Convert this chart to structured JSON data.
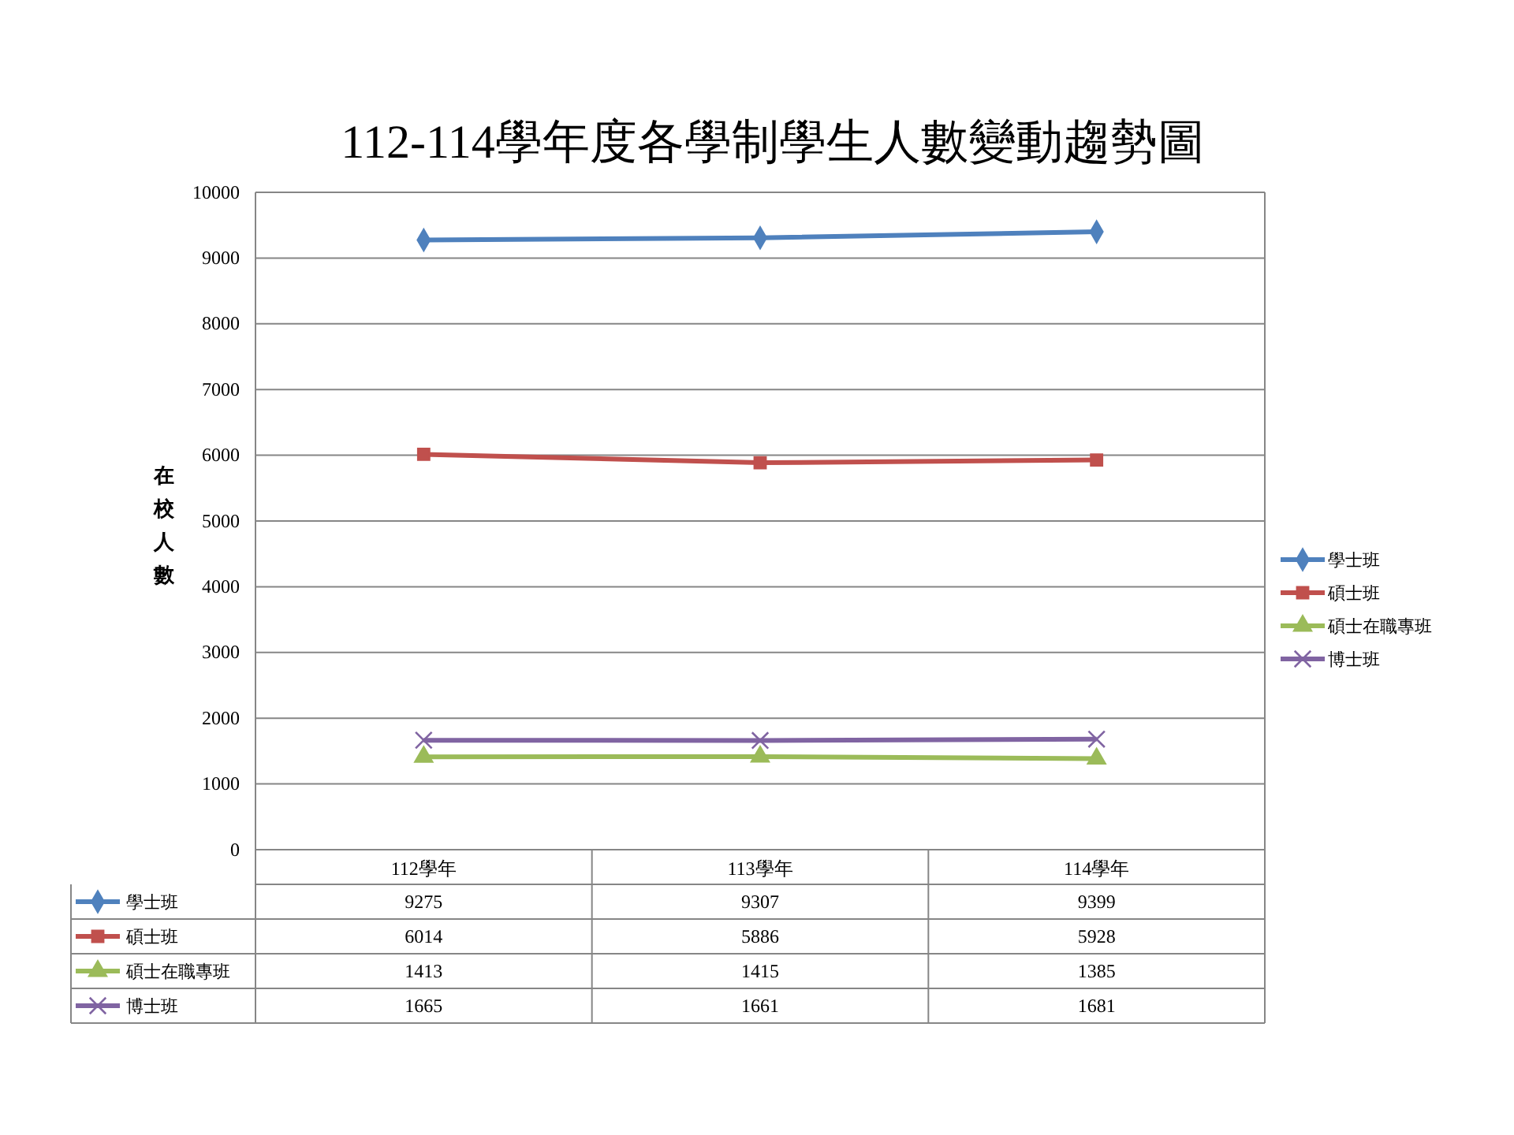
{
  "chart_data": {
    "type": "line",
    "title": "112-114學年度各學制學生人數變動趨勢圖",
    "ylabel": "在校人數",
    "categories": [
      "112學年",
      "113學年",
      "114學年"
    ],
    "series": [
      {
        "name": "學士班",
        "color": "#4f81bd",
        "marker": "diamond",
        "values": [
          9275,
          9307,
          9399
        ]
      },
      {
        "name": "碩士班",
        "color": "#c0504d",
        "marker": "square",
        "values": [
          6014,
          5886,
          5928
        ]
      },
      {
        "name": "碩士在職專班",
        "color": "#9bbb59",
        "marker": "triangle",
        "values": [
          1413,
          1415,
          1385
        ]
      },
      {
        "name": "博士班",
        "color": "#8064a2",
        "marker": "cross",
        "values": [
          1665,
          1661,
          1681
        ]
      }
    ],
    "ylim": [
      0,
      10000
    ],
    "yticks": [
      0,
      1000,
      2000,
      3000,
      4000,
      5000,
      6000,
      7000,
      8000,
      9000,
      10000
    ],
    "grid": "y",
    "legend": "right",
    "data_labels": true
  }
}
